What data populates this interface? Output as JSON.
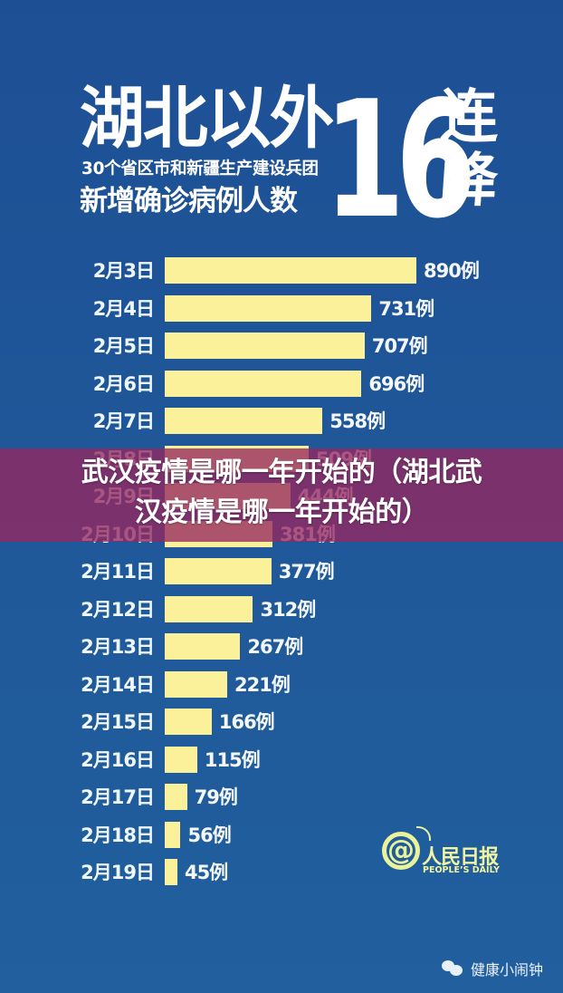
{
  "header": {
    "title_main": "湖北以外",
    "subtitle_line1": "30个省区市和新疆生产建设兵团",
    "subtitle_line2": "新增确诊病例人数",
    "big_number": "16",
    "side_char_1": "连",
    "side_char_2": "降"
  },
  "overlay": {
    "line1": "武汉疫情是哪一年开始的（湖北武",
    "line2": "汉疫情是哪一年开始的）",
    "color": "#962860"
  },
  "logo": {
    "at_symbol": "@",
    "name_cn": "人民日报",
    "name_en": "PEOPLE’S DAILY"
  },
  "footer": {
    "icon": "wechat-icon",
    "account_name": "健康小闹钟"
  },
  "colors": {
    "background": "#1f5596",
    "bar": "#fbf19a",
    "text": "#ffffff"
  },
  "chart_data": {
    "type": "bar",
    "orientation": "horizontal",
    "title": "湖北以外30个省区市和新疆生产建设兵团新增确诊病例人数16连降",
    "xlabel": "",
    "ylabel": "",
    "unit": "例",
    "categories": [
      "2月3日",
      "2月4日",
      "2月5日",
      "2月6日",
      "2月7日",
      "2月8日",
      "2月9日",
      "2月10日",
      "2月11日",
      "2月12日",
      "2月13日",
      "2月14日",
      "2月15日",
      "2月16日",
      "2月17日",
      "2月18日",
      "2月19日"
    ],
    "values": [
      890,
      731,
      707,
      696,
      558,
      509,
      444,
      381,
      377,
      312,
      267,
      221,
      166,
      115,
      79,
      56,
      45
    ],
    "labels": [
      "890例",
      "731例",
      "707例",
      "696例",
      "558例",
      "509例",
      "444例",
      "381例",
      "377例",
      "312例",
      "267例",
      "221例",
      "166例",
      "115例",
      "79例",
      "56例",
      "45例"
    ],
    "grid": false,
    "legend": "none"
  }
}
